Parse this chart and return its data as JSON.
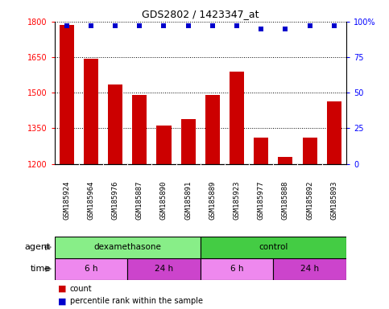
{
  "title": "GDS2802 / 1423347_at",
  "samples": [
    "GSM185924",
    "GSM185964",
    "GSM185976",
    "GSM185887",
    "GSM185890",
    "GSM185891",
    "GSM185889",
    "GSM185923",
    "GSM185977",
    "GSM185888",
    "GSM185892",
    "GSM185893"
  ],
  "counts": [
    1785,
    1645,
    1535,
    1490,
    1360,
    1390,
    1490,
    1590,
    1310,
    1230,
    1310,
    1465
  ],
  "percentile_ranks": [
    97,
    97,
    97,
    97,
    97,
    97,
    97,
    97,
    95,
    95,
    97,
    97
  ],
  "bar_color": "#cc0000",
  "dot_color": "#0000cc",
  "ylim_left": [
    1200,
    1800
  ],
  "ylim_right": [
    0,
    100
  ],
  "yticks_left": [
    1200,
    1350,
    1500,
    1650,
    1800
  ],
  "yticks_right": [
    0,
    25,
    50,
    75,
    100
  ],
  "agent_groups": [
    {
      "label": "dexamethasone",
      "start": 0,
      "end": 6,
      "color": "#88ee88"
    },
    {
      "label": "control",
      "start": 6,
      "end": 12,
      "color": "#44cc44"
    }
  ],
  "time_groups": [
    {
      "label": "6 h",
      "start": 0,
      "end": 3,
      "color": "#ee88ee"
    },
    {
      "label": "24 h",
      "start": 3,
      "end": 6,
      "color": "#cc44cc"
    },
    {
      "label": "6 h",
      "start": 6,
      "end": 9,
      "color": "#ee88ee"
    },
    {
      "label": "24 h",
      "start": 9,
      "end": 12,
      "color": "#cc44cc"
    }
  ],
  "legend_items": [
    {
      "label": "count",
      "color": "#cc0000"
    },
    {
      "label": "percentile rank within the sample",
      "color": "#0000cc"
    }
  ],
  "agent_label": "agent",
  "time_label": "time",
  "label_area_color": "#d0d0d0",
  "axis_bg_color": "#ffffff"
}
